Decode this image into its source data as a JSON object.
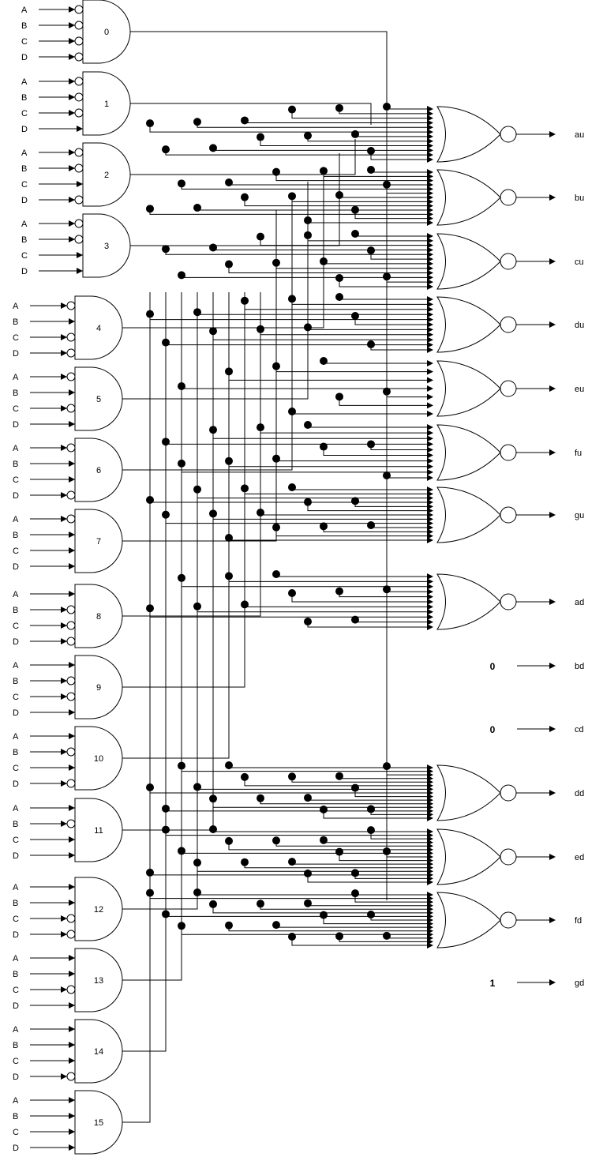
{
  "decoder": {
    "inputs": [
      "A",
      "B",
      "C",
      "D"
    ],
    "gates": [
      {
        "label": "0",
        "inverted": [
          true,
          true,
          true,
          true
        ]
      },
      {
        "label": "1",
        "inverted": [
          true,
          true,
          true,
          false
        ]
      },
      {
        "label": "2",
        "inverted": [
          true,
          true,
          false,
          true
        ]
      },
      {
        "label": "3",
        "inverted": [
          true,
          true,
          false,
          false
        ]
      },
      {
        "label": "4",
        "inverted": [
          true,
          false,
          true,
          true
        ]
      },
      {
        "label": "5",
        "inverted": [
          true,
          false,
          true,
          false
        ]
      },
      {
        "label": "6",
        "inverted": [
          true,
          false,
          false,
          true
        ]
      },
      {
        "label": "7",
        "inverted": [
          true,
          false,
          false,
          false
        ]
      },
      {
        "label": "8",
        "inverted": [
          false,
          true,
          true,
          true
        ]
      },
      {
        "label": "9",
        "inverted": [
          false,
          true,
          true,
          false
        ]
      },
      {
        "label": "10",
        "inverted": [
          false,
          true,
          false,
          true
        ]
      },
      {
        "label": "11",
        "inverted": [
          false,
          true,
          false,
          false
        ]
      },
      {
        "label": "12",
        "inverted": [
          false,
          false,
          true,
          true
        ]
      },
      {
        "label": "13",
        "inverted": [
          false,
          false,
          true,
          false
        ]
      },
      {
        "label": "14",
        "inverted": [
          false,
          false,
          false,
          true
        ]
      },
      {
        "label": "15",
        "inverted": [
          false,
          false,
          false,
          false
        ]
      }
    ]
  },
  "outputs": [
    {
      "label": "au",
      "type": "nor"
    },
    {
      "label": "bu",
      "type": "nor"
    },
    {
      "label": "cu",
      "type": "nor"
    },
    {
      "label": "du",
      "type": "nor"
    },
    {
      "label": "eu",
      "type": "nor"
    },
    {
      "label": "fu",
      "type": "nor"
    },
    {
      "label": "gu",
      "type": "nor"
    },
    {
      "label": "ad",
      "type": "nor"
    },
    {
      "label": "bd",
      "type": "const",
      "value": "0"
    },
    {
      "label": "cd",
      "type": "const",
      "value": "0"
    },
    {
      "label": "dd",
      "type": "nor"
    },
    {
      "label": "ed",
      "type": "nor"
    },
    {
      "label": "fd",
      "type": "nor"
    },
    {
      "label": "gd",
      "type": "const",
      "value": "1"
    }
  ],
  "colors": {
    "line": "#000000",
    "background": "#ffffff"
  }
}
